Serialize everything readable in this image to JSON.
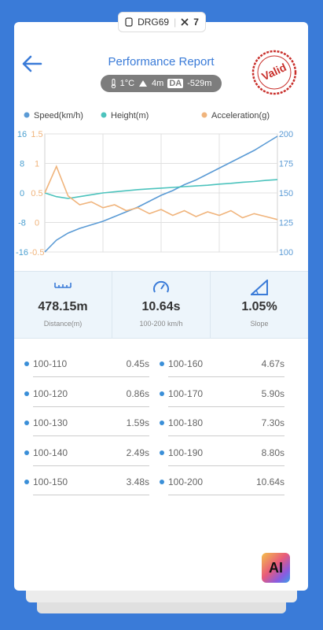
{
  "top_bar": {
    "device": "DRG69",
    "count": "7"
  },
  "header": {
    "title": "Performance Report",
    "stamp": "Valid",
    "conditions": {
      "temperature": "1°C",
      "altitude": "4m",
      "da_label": "DA",
      "da_value": "-529m"
    }
  },
  "chart_data": {
    "type": "line",
    "series": [
      {
        "name": "Speed(km/h)",
        "color": "#5b9bd5",
        "axis": "y2",
        "values": [
          100,
          110,
          116,
          120,
          123,
          126,
          130,
          134,
          138,
          143,
          148,
          152,
          157,
          161,
          166,
          171,
          176,
          181,
          186,
          192,
          198
        ]
      },
      {
        "name": "Height(m)",
        "color": "#4cc3bd",
        "axis": "y",
        "values": [
          0,
          -1,
          -1.5,
          -1,
          -0.5,
          0,
          0.3,
          0.6,
          0.9,
          1.1,
          1.3,
          1.5,
          1.7,
          1.9,
          2.1,
          2.4,
          2.6,
          2.9,
          3.1,
          3.4,
          3.6
        ]
      },
      {
        "name": "Acceleration(g)",
        "color": "#f0b47c",
        "axis": "y3",
        "values": [
          0.5,
          0.95,
          0.45,
          0.3,
          0.35,
          0.25,
          0.3,
          0.2,
          0.25,
          0.15,
          0.22,
          0.12,
          0.2,
          0.1,
          0.18,
          0.12,
          0.2,
          0.08,
          0.15,
          0.1,
          0.05
        ]
      }
    ],
    "ylim": [
      -16,
      16
    ],
    "yticks": [
      16,
      8,
      0,
      -8,
      -16
    ],
    "ycolor": "#4a9fd0",
    "y3lim": [
      -0.5,
      1.5
    ],
    "y3ticks": [
      1.5,
      1,
      0.5,
      0,
      -0.5
    ],
    "y3color": "#f0b47c",
    "y2lim": [
      100,
      200
    ],
    "y2ticks": [
      200,
      175,
      150,
      125,
      100
    ],
    "y2color": "#5b9bd5",
    "grid": true
  },
  "summary": [
    {
      "value": "478.15m",
      "label": "Distance(m)"
    },
    {
      "value": "10.64s",
      "label": "100-200 km/h"
    },
    {
      "value": "1.05%",
      "label": "Slope"
    }
  ],
  "splits": [
    {
      "label": "100-110",
      "time": "0.45s"
    },
    {
      "label": "100-120",
      "time": "0.86s"
    },
    {
      "label": "100-130",
      "time": "1.59s"
    },
    {
      "label": "100-140",
      "time": "2.49s"
    },
    {
      "label": "100-150",
      "time": "3.48s"
    },
    {
      "label": "100-160",
      "time": "4.67s"
    },
    {
      "label": "100-170",
      "time": "5.90s"
    },
    {
      "label": "100-180",
      "time": "7.30s"
    },
    {
      "label": "100-190",
      "time": "8.80s"
    },
    {
      "label": "100-200",
      "time": "10.64s"
    }
  ],
  "ai_button": "AI"
}
